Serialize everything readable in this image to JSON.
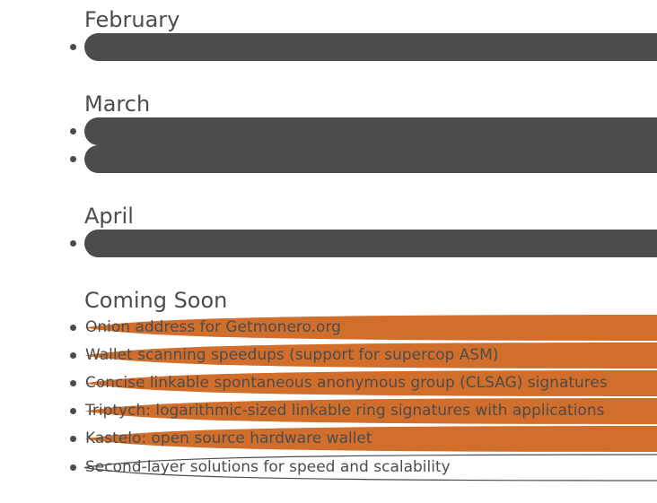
{
  "months": [
    {
      "heading": "February",
      "items": [
        {
          "text": "",
          "state": "done"
        }
      ]
    },
    {
      "heading": "March",
      "items": [
        {
          "text": "",
          "state": "done"
        },
        {
          "text": "",
          "state": "done"
        }
      ]
    },
    {
      "heading": "April",
      "items": [
        {
          "text": "",
          "state": "done"
        }
      ]
    }
  ],
  "coming_soon": {
    "heading": "Coming Soon",
    "items": [
      {
        "text": "Onion address for Getmonero.org",
        "state": "in-progress"
      },
      {
        "text": "Wallet scanning speedups (support for supercop ASM)",
        "state": "in-progress"
      },
      {
        "text": "Concise linkable spontaneous anonymous group (CLSAG) signatures",
        "state": "in-progress"
      },
      {
        "text": "Triptych: logarithmic-sized linkable ring signatures with applications",
        "state": "in-progress"
      },
      {
        "text": "Kastelo: open source hardware wallet",
        "state": "in-progress"
      },
      {
        "text": "Second-layer solutions for speed and scalability",
        "state": "planned"
      }
    ]
  },
  "colors": {
    "done": "#4c4c4c",
    "in_progress": "#d26e2b",
    "planned_outline": "#4c4c4c",
    "text": "#4c4c4c"
  }
}
